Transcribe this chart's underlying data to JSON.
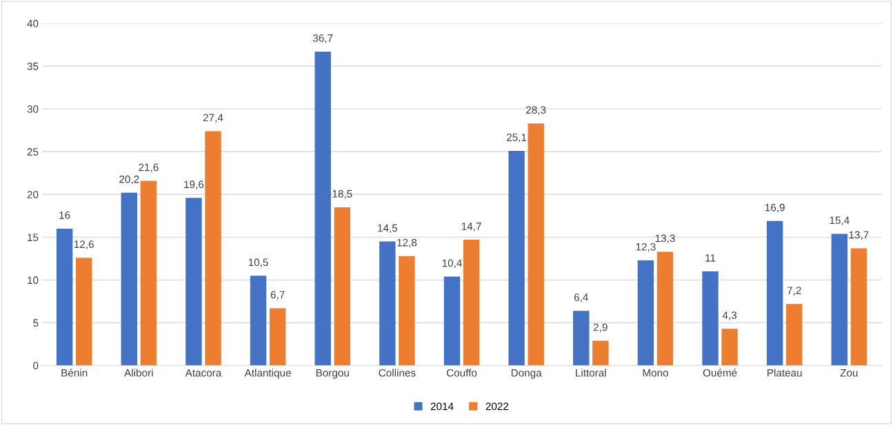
{
  "chart_data": {
    "type": "bar",
    "categories": [
      "Bénin",
      "Alibori",
      "Atacora",
      "Atlantique",
      "Borgou",
      "Collines",
      "Couffo",
      "Donga",
      "Littoral",
      "Mono",
      "Ouémé",
      "Plateau",
      "Zou"
    ],
    "series": [
      {
        "name": "2014",
        "color": "#4472c4",
        "values": [
          16,
          20.2,
          19.6,
          10.5,
          36.7,
          14.5,
          10.4,
          25.1,
          6.4,
          12.3,
          11,
          16.9,
          15.4
        ],
        "value_labels": [
          "16",
          "20,2",
          "19,6",
          "10,5",
          "36,7",
          "14,5",
          "10,4",
          "25,1",
          "6,4",
          "12,3",
          "11",
          "16,9",
          "15,4"
        ]
      },
      {
        "name": "2022",
        "color": "#ed7d31",
        "values": [
          12.6,
          21.6,
          27.4,
          6.7,
          18.5,
          12.8,
          14.7,
          28.3,
          2.9,
          13.3,
          4.3,
          7.2,
          13.7
        ],
        "value_labels": [
          "12,6",
          "21,6",
          "27,4",
          "6,7",
          "18,5",
          "12,8",
          "14,7",
          "28,3",
          "2,9",
          "13,3",
          "4,3",
          "7,2",
          "13,7"
        ]
      }
    ],
    "ylim": [
      0,
      40
    ],
    "yticks": [
      0,
      5,
      10,
      15,
      20,
      25,
      30,
      35,
      40
    ],
    "grid": "y",
    "legend": "bottom"
  }
}
